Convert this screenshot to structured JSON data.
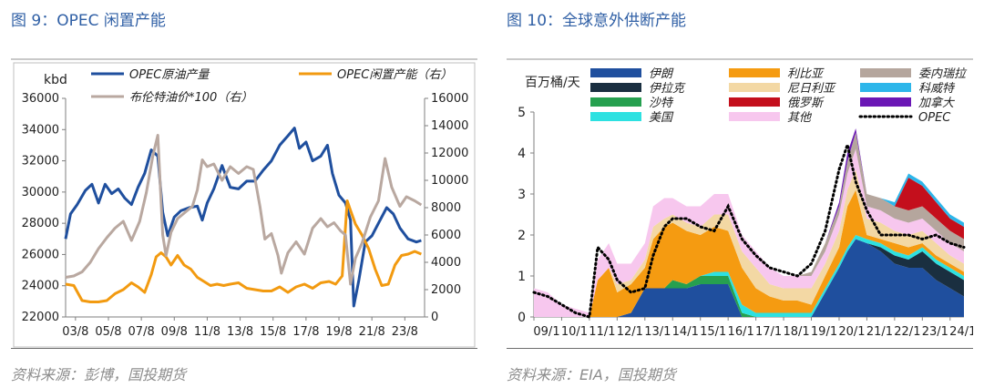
{
  "left": {
    "title": "图 9：OPEC 闲置产能",
    "source": "资料来源：彭博，国投期货",
    "chart_data": {
      "type": "line",
      "ylabel_left": "kbd",
      "ylim_left": [
        22000,
        36000
      ],
      "ylim_right": [
        0,
        16000
      ],
      "yticks_left": [
        "22000",
        "24000",
        "26000",
        "28000",
        "30000",
        "32000",
        "34000",
        "36000"
      ],
      "yticks_right": [
        "0",
        "2000",
        "4000",
        "6000",
        "8000",
        "10000",
        "12000",
        "14000",
        "16000"
      ],
      "xticks": [
        "03/8",
        "05/8",
        "07/8",
        "09/8",
        "11/8",
        "13/8",
        "15/8",
        "17/8",
        "19/8",
        "21/8",
        "23/8"
      ],
      "x_start": 2003.0,
      "x_end": 2024.8,
      "series": [
        {
          "name": "OPEC原油产量",
          "axis": "left",
          "color": "#1f4f9e",
          "x": [
            2003.0,
            2003.3,
            2003.7,
            2004.2,
            2004.6,
            2005.0,
            2005.4,
            2005.8,
            2006.2,
            2006.6,
            2007.0,
            2007.4,
            2007.8,
            2008.2,
            2008.6,
            2008.9,
            2009.2,
            2009.6,
            2010.0,
            2010.5,
            2011.0,
            2011.3,
            2011.6,
            2012.0,
            2012.5,
            2013.0,
            2013.5,
            2014.0,
            2014.5,
            2015.0,
            2015.5,
            2016.0,
            2016.5,
            2016.9,
            2017.2,
            2017.6,
            2018.0,
            2018.5,
            2018.9,
            2019.2,
            2019.6,
            2020.0,
            2020.3,
            2020.5,
            2020.8,
            2021.2,
            2021.6,
            2022.0,
            2022.5,
            2022.9,
            2023.3,
            2023.8,
            2024.3,
            2024.6
          ],
          "y": [
            27000,
            28600,
            29200,
            30100,
            30500,
            29300,
            30500,
            29900,
            30200,
            29600,
            29200,
            30300,
            31200,
            32700,
            32300,
            28700,
            27200,
            28400,
            28800,
            29000,
            29100,
            28200,
            29300,
            30200,
            31700,
            30300,
            30200,
            30700,
            30700,
            31400,
            32000,
            33000,
            33600,
            34100,
            32800,
            33200,
            32000,
            32300,
            33000,
            31200,
            29800,
            29300,
            28200,
            22700,
            24300,
            26800,
            27200,
            28000,
            29000,
            28600,
            27700,
            27000,
            26800,
            26900
          ]
        },
        {
          "name": "OPEC闲置产能",
          "axis": "right",
          "color": "#f29a10",
          "x": [
            2003.0,
            2003.5,
            2004.0,
            2004.5,
            2005.0,
            2005.5,
            2006.0,
            2006.5,
            2007.0,
            2007.4,
            2007.8,
            2008.2,
            2008.5,
            2008.8,
            2009.1,
            2009.4,
            2009.8,
            2010.2,
            2010.6,
            2011.0,
            2011.4,
            2011.8,
            2012.2,
            2012.6,
            2013.0,
            2013.5,
            2014.0,
            2014.5,
            2015.0,
            2015.5,
            2016.0,
            2016.5,
            2017.0,
            2017.5,
            2018.0,
            2018.5,
            2019.0,
            2019.4,
            2019.8,
            2020.1,
            2020.3,
            2020.6,
            2021.0,
            2021.4,
            2021.8,
            2022.2,
            2022.6,
            2023.0,
            2023.4,
            2023.8,
            2024.2,
            2024.6
          ],
          "y": [
            2400,
            2300,
            1200,
            1100,
            1100,
            1200,
            1700,
            2000,
            2500,
            2200,
            1800,
            3100,
            4400,
            4700,
            4400,
            3800,
            4500,
            3800,
            3500,
            2900,
            2600,
            2300,
            2400,
            2300,
            2400,
            2500,
            2100,
            2000,
            1900,
            1900,
            2200,
            1800,
            2200,
            2400,
            2100,
            2500,
            2600,
            2400,
            3000,
            8500,
            7800,
            6800,
            6000,
            5000,
            3500,
            2300,
            2400,
            3800,
            4500,
            4600,
            4800,
            4600
          ]
        },
        {
          "name": "布伦特油价*100",
          "axis": "right",
          "color": "#b9a8a0",
          "x": [
            2003.0,
            2003.5,
            2004.0,
            2004.5,
            2005.0,
            2005.5,
            2006.0,
            2006.5,
            2007.0,
            2007.5,
            2007.9,
            2008.3,
            2008.6,
            2008.9,
            2009.1,
            2009.4,
            2009.8,
            2010.3,
            2010.7,
            2011.0,
            2011.3,
            2011.6,
            2012.0,
            2012.5,
            2013.0,
            2013.5,
            2014.0,
            2014.4,
            2014.8,
            2015.1,
            2015.5,
            2015.9,
            2016.1,
            2016.5,
            2017.0,
            2017.5,
            2018.0,
            2018.5,
            2018.9,
            2019.3,
            2019.7,
            2020.0,
            2020.3,
            2020.6,
            2021.0,
            2021.5,
            2022.0,
            2022.4,
            2022.8,
            2023.3,
            2023.7,
            2024.2,
            2024.6
          ],
          "y": [
            2900,
            3000,
            3300,
            4000,
            5000,
            5800,
            6500,
            7000,
            5600,
            7000,
            9100,
            11800,
            13300,
            6000,
            4500,
            6200,
            7200,
            7700,
            8100,
            9300,
            11500,
            11000,
            11200,
            10000,
            11000,
            10500,
            11000,
            10800,
            8100,
            5700,
            6100,
            4500,
            3200,
            4700,
            5500,
            4600,
            6500,
            7200,
            6600,
            6900,
            6300,
            6000,
            2400,
            4300,
            5400,
            7300,
            8500,
            11600,
            9500,
            8100,
            8800,
            8500,
            8200
          ]
        }
      ],
      "legend_position": "top"
    }
  },
  "right": {
    "title": "图 10：全球意外供断产能",
    "source": "资料来源：EIA，国投期货",
    "chart_data": {
      "type": "area",
      "ylabel": "百万桶/天",
      "ylim": [
        0,
        5
      ],
      "yticks": [
        "0",
        "1",
        "2",
        "3",
        "4",
        "5"
      ],
      "xticks": [
        "09/1",
        "10/1",
        "11/1",
        "12/1",
        "13/1",
        "14/1",
        "15/1",
        "16/1",
        "17/1",
        "18/1",
        "19/1",
        "20/1",
        "21/1",
        "22/1",
        "23/1",
        "24/1"
      ],
      "x_start": 2009.0,
      "x_end": 2024.5,
      "x": [
        2009.0,
        2009.5,
        2010.0,
        2010.5,
        2011.0,
        2011.3,
        2011.7,
        2012.0,
        2012.5,
        2013.0,
        2013.3,
        2013.7,
        2014.0,
        2014.5,
        2015.0,
        2015.5,
        2016.0,
        2016.5,
        2017.0,
        2017.5,
        2018.0,
        2018.5,
        2019.0,
        2019.5,
        2020.0,
        2020.3,
        2020.6,
        2021.0,
        2021.5,
        2022.0,
        2022.5,
        2023.0,
        2023.5,
        2024.0,
        2024.5
      ],
      "series": [
        {
          "name": "伊朗",
          "color": "#1f4f9e",
          "values": [
            0,
            0,
            0,
            0,
            0,
            0,
            0,
            0,
            0.1,
            0.7,
            0.7,
            0.7,
            0.7,
            0.7,
            0.8,
            0.8,
            0.8,
            0,
            0,
            0,
            0,
            0,
            0,
            0.6,
            1.2,
            1.6,
            1.9,
            1.8,
            1.6,
            1.3,
            1.2,
            1.2,
            0.9,
            0.7,
            0.5
          ]
        },
        {
          "name": "伊拉克",
          "color": "#1a2f40",
          "values": [
            0,
            0,
            0,
            0,
            0,
            0,
            0,
            0,
            0,
            0,
            0,
            0,
            0,
            0,
            0,
            0,
            0,
            0,
            0,
            0,
            0,
            0,
            0,
            0,
            0,
            0,
            0,
            0,
            0.1,
            0.2,
            0.2,
            0.4,
            0.4,
            0.4,
            0.4
          ]
        },
        {
          "name": "沙特",
          "color": "#26a04f",
          "values": [
            0,
            0,
            0,
            0,
            0,
            0,
            0,
            0,
            0,
            0,
            0,
            0,
            0.2,
            0.1,
            0.2,
            0.2,
            0.2,
            0.1,
            0,
            0,
            0,
            0,
            0,
            0,
            0,
            0,
            0,
            0,
            0,
            0,
            0,
            0,
            0,
            0,
            0
          ]
        },
        {
          "name": "美国",
          "color": "#2de1e1",
          "values": [
            0,
            0,
            0,
            0,
            0,
            0,
            0,
            0,
            0,
            0,
            0,
            0,
            0,
            0,
            0,
            0.1,
            0.1,
            0.2,
            0.1,
            0.1,
            0.1,
            0.1,
            0.1,
            0.1,
            0.1,
            0.1,
            0.1,
            0.1,
            0.1,
            0.1,
            0.1,
            0.1,
            0.1,
            0.1,
            0.1
          ]
        },
        {
          "name": "利比亚",
          "color": "#f59b11",
          "values": [
            0,
            0,
            0,
            0,
            0,
            0.9,
            1.2,
            0.6,
            0.7,
            0.5,
            1.2,
            1.5,
            1.4,
            1.3,
            1.0,
            1.1,
            1.0,
            0.9,
            0.6,
            0.4,
            0.3,
            0.3,
            0.2,
            0.3,
            0.4,
            1.0,
            1.1,
            0.1,
            0.1,
            0.2,
            0.2,
            0.1,
            0.1,
            0.1,
            0.1
          ]
        },
        {
          "name": "尼日利亚",
          "color": "#f3d8a4",
          "values": [
            0,
            0,
            0,
            0,
            0,
            0,
            0,
            0.2,
            0.1,
            0.2,
            0.3,
            0.2,
            0.2,
            0.2,
            0.2,
            0.3,
            0.4,
            0.4,
            0.5,
            0.3,
            0.3,
            0.3,
            0.4,
            0.3,
            0.4,
            0.4,
            0.5,
            0.4,
            0.4,
            0.3,
            0.3,
            0.3,
            0.3,
            0.2,
            0.2
          ]
        },
        {
          "name": "其他",
          "color": "#f7c7ee",
          "values": [
            0.7,
            0.6,
            0.3,
            0.2,
            0.1,
            0.5,
            0.6,
            0.5,
            0.4,
            0.4,
            0.5,
            0.5,
            0.4,
            0.4,
            0.5,
            0.5,
            0.5,
            0.4,
            0.4,
            0.4,
            0.3,
            0.3,
            0.3,
            0.3,
            0.4,
            0.4,
            0.5,
            0.3,
            0.3,
            0.3,
            0.3,
            0.3,
            0.3,
            0.3,
            0.3
          ]
        },
        {
          "name": "委内瑞拉",
          "color": "#b5a69d",
          "values": [
            0,
            0,
            0,
            0,
            0,
            0,
            0,
            0,
            0,
            0,
            0,
            0,
            0,
            0,
            0,
            0,
            0,
            0,
            0,
            0,
            0,
            0,
            0.1,
            0.2,
            0.2,
            0.3,
            0.4,
            0.3,
            0.3,
            0.3,
            0.3,
            0.3,
            0.3,
            0.3,
            0.3
          ]
        },
        {
          "name": "俄罗斯",
          "color": "#c40f1c",
          "values": [
            0,
            0,
            0,
            0,
            0,
            0,
            0,
            0,
            0,
            0,
            0,
            0,
            0,
            0,
            0,
            0,
            0,
            0,
            0,
            0,
            0,
            0,
            0,
            0,
            0,
            0,
            0,
            0,
            0,
            0,
            0.8,
            0.5,
            0.4,
            0.3,
            0.3
          ]
        },
        {
          "name": "科威特",
          "color": "#2db6ea",
          "values": [
            0,
            0,
            0,
            0,
            0,
            0,
            0,
            0,
            0,
            0,
            0,
            0,
            0,
            0,
            0,
            0,
            0,
            0,
            0,
            0,
            0,
            0,
            0,
            0,
            0,
            0,
            0,
            0,
            0,
            0.1,
            0.1,
            0.1,
            0.1,
            0.1,
            0.1
          ]
        },
        {
          "name": "加拿大",
          "color": "#6a17b5",
          "values": [
            0,
            0,
            0,
            0,
            0,
            0,
            0,
            0,
            0,
            0,
            0,
            0,
            0,
            0,
            0,
            0,
            0,
            0,
            0,
            0,
            0,
            0,
            0,
            0,
            0.1,
            0.2,
            0.1,
            0,
            0,
            0,
            0,
            0,
            0,
            0,
            0
          ]
        }
      ],
      "opec_series": {
        "name": "OPEC",
        "color": "#000000",
        "values": [
          0.6,
          0.5,
          0.3,
          0.1,
          0,
          1.7,
          1.4,
          0.9,
          0.6,
          0.7,
          1.5,
          2.2,
          2.4,
          2.4,
          2.2,
          2.1,
          2.7,
          1.9,
          1.5,
          1.2,
          1.1,
          1.0,
          1.3,
          2.1,
          3.6,
          4.2,
          3.3,
          2.6,
          2.0,
          2.0,
          2.0,
          1.9,
          2.0,
          1.8,
          1.7
        ]
      },
      "legend_columns": [
        [
          "伊朗",
          "伊拉克",
          "沙特",
          "美国"
        ],
        [
          "利比亚",
          "尼日利亚",
          "俄罗斯",
          "其他"
        ],
        [
          "委内瑞拉",
          "科威特",
          "加拿大",
          "OPEC"
        ]
      ]
    }
  }
}
